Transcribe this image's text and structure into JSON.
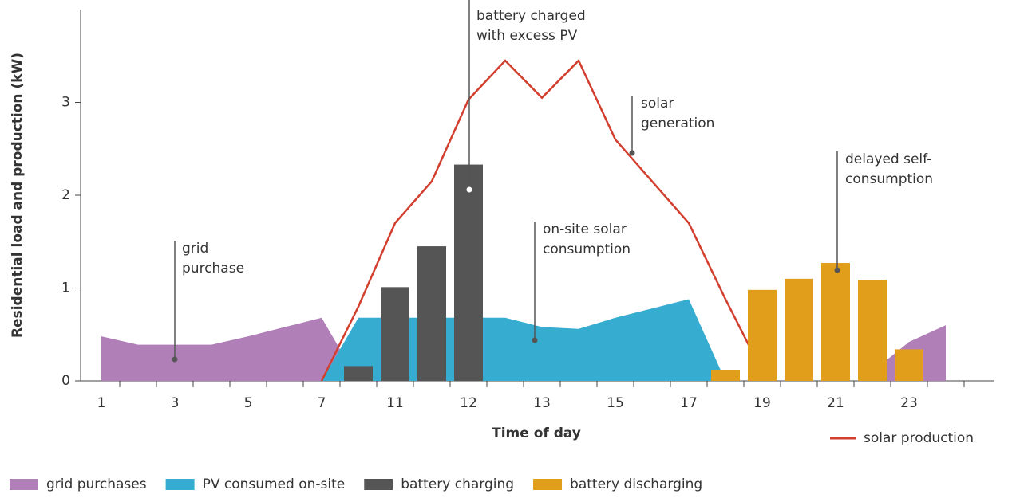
{
  "chart_data": {
    "type": "combo",
    "y_label": "Residential load and production (kW)",
    "x_label": "Time of day",
    "categories": [
      "1",
      null,
      "3",
      null,
      "5",
      null,
      "7",
      null,
      "11",
      null,
      "12",
      null,
      "13",
      null,
      "15",
      null,
      "17",
      null,
      "19",
      null,
      "21",
      null,
      "23",
      null
    ],
    "ylim": [
      0,
      4
    ],
    "yticks": [
      0,
      1,
      2,
      3
    ],
    "series": [
      {
        "name": "grid purchases",
        "type": "area",
        "color": "#b07fb8",
        "values": [
          0.48,
          0.39,
          0.39,
          0.39,
          0.48,
          0.58,
          0.68,
          0,
          null,
          null,
          null,
          null,
          null,
          null,
          null,
          null,
          null,
          null,
          null,
          null,
          null,
          0.1,
          0.42,
          0.6
        ]
      },
      {
        "name": "PV consumed on-site",
        "type": "area",
        "color": "#36acd0",
        "values": [
          null,
          null,
          null,
          null,
          null,
          null,
          0,
          0.68,
          0.68,
          0.68,
          0.68,
          0.68,
          0.58,
          0.56,
          0.68,
          0.78,
          0.88,
          0,
          null,
          null,
          null,
          null,
          null,
          null
        ]
      },
      {
        "name": "solar production",
        "type": "line",
        "color": "#d23f2f",
        "values": [
          null,
          null,
          null,
          null,
          null,
          null,
          0,
          0.8,
          1.7,
          2.15,
          3.03,
          3.45,
          3.05,
          3.45,
          2.6,
          2.15,
          1.7,
          0.88,
          0.1,
          null,
          null,
          null,
          null,
          null
        ]
      },
      {
        "name": "battery charging",
        "type": "bar",
        "color": "#555555",
        "values": [
          null,
          null,
          null,
          null,
          null,
          null,
          null,
          0.16,
          1.01,
          1.45,
          2.33,
          null,
          null,
          null,
          null,
          null,
          null,
          null,
          null,
          null,
          null,
          null,
          null,
          null
        ]
      },
      {
        "name": "battery discharging",
        "type": "bar",
        "color": "#e09e1b",
        "values": [
          null,
          null,
          null,
          null,
          null,
          null,
          null,
          null,
          null,
          null,
          null,
          null,
          null,
          null,
          null,
          null,
          null,
          0.12,
          0.98,
          1.1,
          1.27,
          1.09,
          0.34,
          null
        ]
      }
    ],
    "annotations": [
      {
        "lines": [
          "grid",
          "purchase"
        ]
      },
      {
        "lines": [
          "battery charged",
          "with excess PV"
        ]
      },
      {
        "lines": [
          "solar",
          "generation"
        ]
      },
      {
        "lines": [
          "on-site solar",
          "consumption"
        ]
      },
      {
        "lines": [
          "delayed self-",
          "consumption"
        ]
      }
    ]
  }
}
